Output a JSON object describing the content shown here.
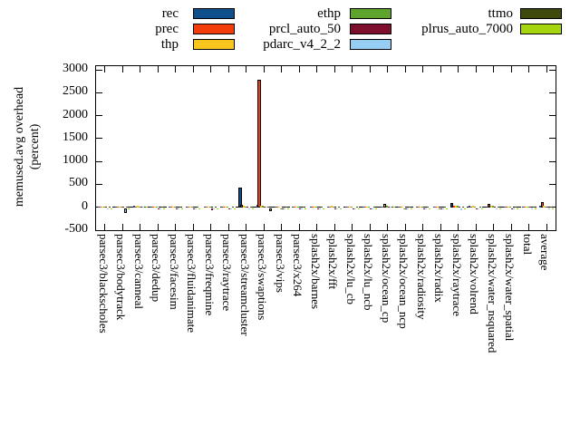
{
  "figure": {
    "background": "#ffffff",
    "axis_color": "#000000"
  },
  "legend": {
    "position": "top",
    "columns": [
      [
        "rec",
        "prec",
        "thp"
      ],
      [
        "ethp",
        "prcl_auto_50",
        "pdarc_v4_2_2"
      ],
      [
        "ttmo",
        "plrus_auto_7000"
      ]
    ]
  },
  "chart_data": {
    "type": "bar",
    "title": "",
    "xlabel": "",
    "ylabel": "memused.avg overhead (percent)",
    "ylabel_lines": [
      "memused.avg overhead",
      "(percent)"
    ],
    "ylim": [
      -500,
      3000
    ],
    "yticks": [
      3000,
      2500,
      2000,
      1500,
      1000,
      500,
      0,
      -500
    ],
    "grid": false,
    "zero_line": "dashed",
    "categories": [
      "parsec3/blackscholes",
      "parsec3/bodytrack",
      "parsec3/canneal",
      "parsec3/dedup",
      "parsec3/facesim",
      "parsec3/fluidanimate",
      "parsec3/freqmine",
      "parsec3/raytrace",
      "parsec3/streamcluster",
      "parsec3/swaptions",
      "parsec3/vips",
      "parsec3/x264",
      "splash2x/barnes",
      "splash2x/fft",
      "splash2x/lu_cb",
      "splash2x/lu_ncb",
      "splash2x/ocean_cp",
      "splash2x/ocean_ncp",
      "splash2x/radiosity",
      "splash2x/radix",
      "splash2x/raytrace",
      "splash2x/volrend",
      "splash2x/water_nsquared",
      "splash2x/water_spatial",
      "total",
      "average"
    ],
    "series": [
      {
        "name": "rec",
        "color": "#0e4f8c",
        "values": [
          5,
          10,
          25,
          8,
          5,
          6,
          15,
          10,
          420,
          45,
          8,
          15,
          8,
          20,
          6,
          6,
          20,
          8,
          12,
          8,
          85,
          25,
          20,
          10,
          15,
          30
        ]
      },
      {
        "name": "prec",
        "color": "#f23d0a",
        "values": [
          3,
          8,
          18,
          5,
          4,
          4,
          10,
          6,
          60,
          2780,
          5,
          10,
          5,
          12,
          4,
          4,
          15,
          5,
          8,
          5,
          30,
          15,
          65,
          8,
          10,
          120
        ]
      },
      {
        "name": "thp",
        "color": "#f8c51c",
        "values": [
          8,
          15,
          30,
          10,
          8,
          10,
          20,
          12,
          25,
          35,
          10,
          18,
          10,
          25,
          8,
          8,
          65,
          10,
          15,
          10,
          35,
          30,
          30,
          15,
          20,
          25
        ]
      },
      {
        "name": "ethp",
        "color": "#5ea32b",
        "values": [
          6,
          12,
          22,
          8,
          6,
          8,
          15,
          8,
          20,
          30,
          -30,
          12,
          8,
          15,
          6,
          6,
          25,
          -25,
          10,
          -35,
          25,
          20,
          25,
          10,
          12,
          15
        ]
      },
      {
        "name": "prcl_auto_50",
        "color": "#7d0f2d",
        "values": [
          4,
          6,
          15,
          -15,
          -35,
          -12,
          -40,
          -20,
          15,
          20,
          -25,
          -15,
          -25,
          -30,
          -30,
          -20,
          12,
          -20,
          -18,
          -30,
          15,
          -35,
          15,
          -12,
          8,
          10
        ]
      },
      {
        "name": "pdarc_v4_2_2",
        "color": "#96cdf2",
        "values": [
          -18,
          -100,
          10,
          -10,
          -30,
          -15,
          -35,
          -15,
          -20,
          15,
          -20,
          -10,
          -20,
          -25,
          -25,
          -18,
          10,
          -18,
          -15,
          -25,
          -45,
          -30,
          -25,
          -10,
          -10,
          -15
        ]
      },
      {
        "name": "ttmo",
        "color": "#3e4a0b",
        "values": [
          4,
          8,
          12,
          5,
          4,
          5,
          8,
          5,
          10,
          10,
          5,
          8,
          5,
          8,
          4,
          4,
          8,
          5,
          6,
          5,
          10,
          8,
          10,
          5,
          6,
          8
        ]
      },
      {
        "name": "plrus_auto_7000",
        "color": "#a6d40e",
        "values": [
          -12,
          -20,
          8,
          -8,
          -10,
          -10,
          -15,
          -25,
          -15,
          -60,
          -15,
          -12,
          -15,
          -18,
          -15,
          -12,
          6,
          -12,
          -10,
          -15,
          -20,
          -15,
          -15,
          -8,
          -8,
          -10
        ]
      }
    ]
  }
}
